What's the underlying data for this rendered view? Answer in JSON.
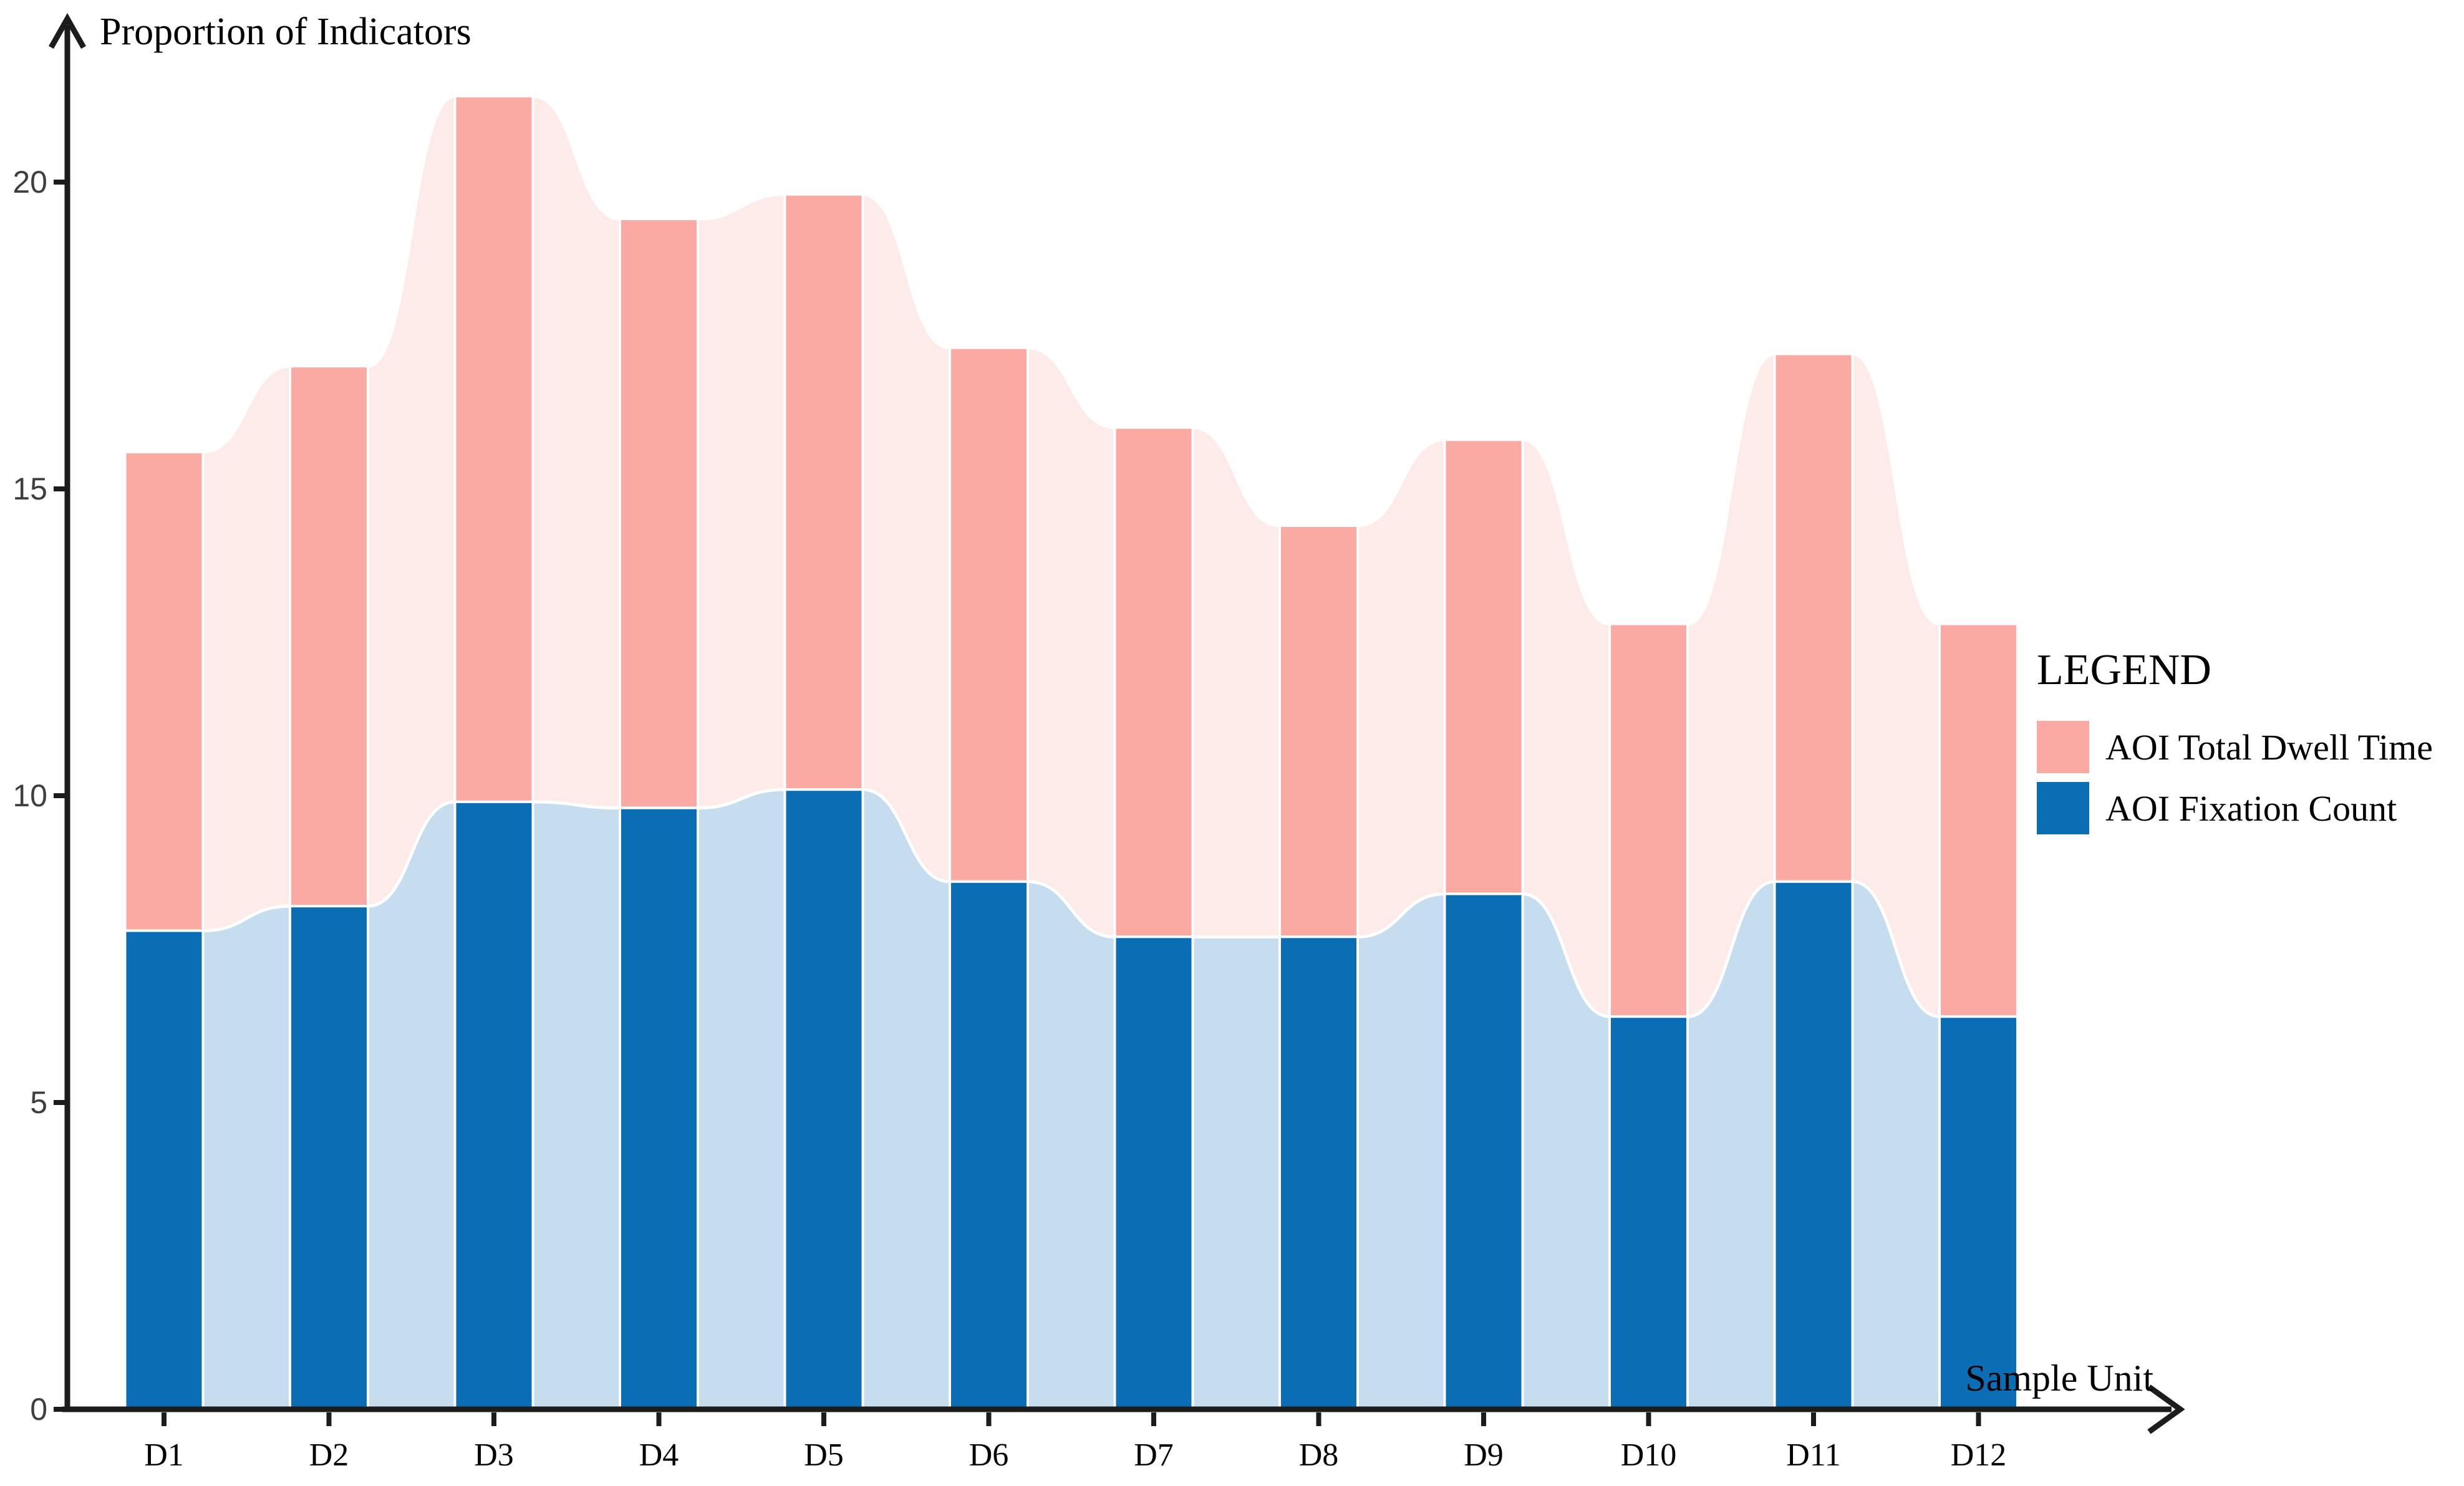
{
  "chart_data": {
    "type": "bar",
    "variant": "stacked-bars-with-smoothed-connecting-bands",
    "ylabel": "Proportion of Indicators",
    "xlabel": "Sample Unit",
    "categories": [
      "D1",
      "D2",
      "D3",
      "D4",
      "D5",
      "D6",
      "D7",
      "D8",
      "D9",
      "D10",
      "D11",
      "D12"
    ],
    "series": [
      {
        "name": "AOI Fixation Count",
        "values": [
          7.8,
          8.2,
          9.9,
          9.8,
          10.1,
          8.6,
          7.7,
          7.7,
          8.4,
          6.4,
          8.6,
          6.4
        ],
        "color": "#0b6db4",
        "band_color": "#c6dcef"
      },
      {
        "name": "AOI Total Dwell Time",
        "values": [
          7.8,
          8.8,
          11.5,
          9.6,
          9.7,
          8.7,
          8.3,
          6.7,
          7.4,
          6.4,
          8.6,
          6.4
        ],
        "color": "#fbaaa3",
        "band_color": "#fdebe9"
      }
    ],
    "stack_totals": [
      15.6,
      17.0,
      21.4,
      19.4,
      19.8,
      17.3,
      16.0,
      14.4,
      15.8,
      12.8,
      17.2,
      12.8
    ],
    "y_ticks": [
      0,
      5,
      10,
      15,
      20
    ],
    "ylim": [
      0,
      21.5
    ],
    "grid": "off",
    "legend_position": "right",
    "legend": {
      "title": "LEGEND",
      "entries": [
        {
          "label": "AOI Total Dwell Time",
          "color": "#fbaaa3"
        },
        {
          "label": "AOI Fixation Count",
          "color": "#0b6db4"
        }
      ]
    },
    "colors": {
      "axis": "#1c1c1c",
      "tick_label": "#3f3f3f",
      "separator": "#ffffff"
    }
  }
}
